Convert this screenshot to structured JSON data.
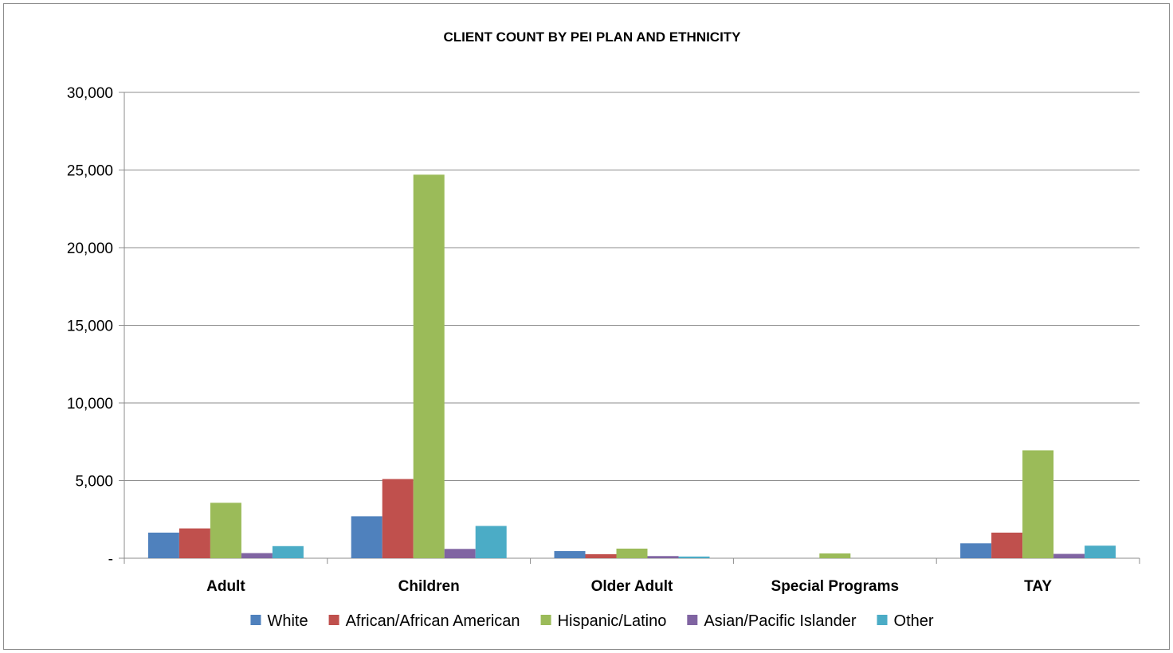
{
  "chart_data": {
    "type": "bar",
    "title": "CLIENT COUNT BY PEI PLAN AND ETHNICITY",
    "xlabel": "",
    "ylabel": "",
    "categories": [
      "Adult",
      "Children",
      "Older Adult",
      "Special Programs",
      "TAY"
    ],
    "series": [
      {
        "name": "White",
        "color": "#4f81bd",
        "values": [
          1650,
          2700,
          460,
          0,
          960
        ]
      },
      {
        "name": "African/African American",
        "color": "#c0504d",
        "values": [
          1920,
          5100,
          260,
          0,
          1650
        ]
      },
      {
        "name": "Hispanic/Latino",
        "color": "#9bbb59",
        "values": [
          3570,
          24700,
          620,
          310,
          6950
        ]
      },
      {
        "name": "Asian/Pacific Islander",
        "color": "#8064a2",
        "values": [
          330,
          600,
          140,
          0,
          280
        ]
      },
      {
        "name": "Other",
        "color": "#4bacc6",
        "values": [
          780,
          2080,
          110,
          0,
          810
        ]
      }
    ],
    "ylim": [
      0,
      30000
    ],
    "yticks": [
      0,
      5000,
      10000,
      15000,
      20000,
      25000,
      30000
    ],
    "ytick_labels": [
      "-",
      "5,000",
      "10,000",
      "15,000",
      "20,000",
      "25,000",
      "30,000"
    ],
    "grid": true,
    "legend_position": "bottom"
  }
}
